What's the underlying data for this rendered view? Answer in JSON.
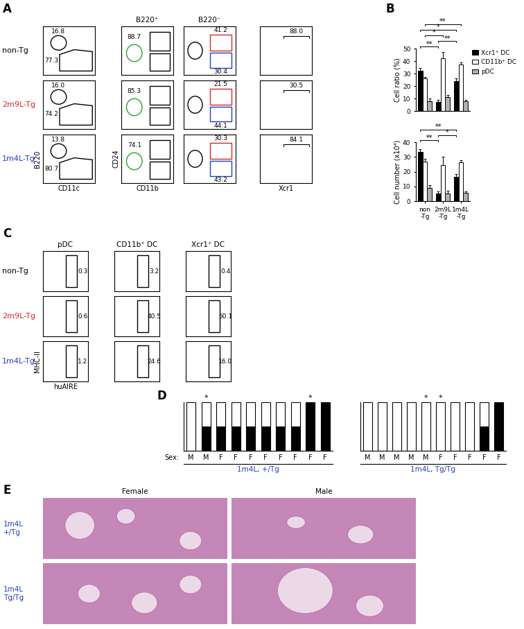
{
  "panel_labels": [
    "A",
    "B",
    "C",
    "D",
    "E"
  ],
  "A": {
    "column_headers": [
      "B220⁺",
      "B220⁻"
    ],
    "x_labels": [
      "CD11c",
      "CD11b",
      "Xcr1"
    ],
    "y_labels": [
      "B220",
      "CD24"
    ],
    "rows": [
      {
        "genotype": "non-Tg",
        "B220_CD11c_gates": [
          16.8,
          77.3
        ],
        "B220pos_gate": 88.7,
        "B220neg_gates": [
          41.2,
          30.4
        ],
        "Xcr1_gate": 88.0
      },
      {
        "genotype": "2m9L-Tg",
        "B220_CD11c_gates": [
          16.0,
          74.2
        ],
        "B220pos_gate": 85.3,
        "B220neg_gates": [
          21.5,
          44.1
        ],
        "Xcr1_gate": 30.5
      },
      {
        "genotype": "1m4L-Tg",
        "B220_CD11c_gates": [
          13.8,
          80.7
        ],
        "B220pos_gate": 74.1,
        "B220neg_gates": [
          30.3,
          43.2
        ],
        "Xcr1_gate": 84.1
      }
    ]
  },
  "C": {
    "column_headers": [
      "pDC",
      "CD11b⁺ DC",
      "Xcr1⁺ DC"
    ],
    "x_label": "huAIRE",
    "y_label": "MHC-II",
    "rows": [
      {
        "genotype": "non-Tg",
        "huAIRE_gates": [
          0.3,
          3.2,
          0.4
        ]
      },
      {
        "genotype": "2m9L-Tg",
        "huAIRE_gates": [
          0.6,
          40.5,
          50.1
        ]
      },
      {
        "genotype": "1m4L-Tg",
        "huAIRE_gates": [
          1.2,
          24.6,
          16.0
        ]
      }
    ]
  },
  "E": {
    "column_headers": [
      "Female",
      "Male"
    ],
    "row_labels": [
      "1m4L\n+/Tg",
      "1m4L\nTg/Tg"
    ]
  },
  "chart_data": [
    {
      "type": "bar",
      "ylabel": "Cell ratio (%)",
      "categories": [
        "non\n-Tg",
        "2m9L\n-Tg",
        "1m4L\n-Tg"
      ],
      "series": [
        {
          "name": "Xcr1⁺ DC",
          "color": "#000000",
          "values": [
            32.5,
            7.5,
            24.0
          ],
          "errors": [
            2.0,
            1.5,
            2.0
          ]
        },
        {
          "name": "CD11b⁺ DC",
          "color": "#ffffff",
          "values": [
            26.0,
            42.0,
            37.5
          ],
          "errors": [
            1.5,
            5.0,
            1.5
          ]
        },
        {
          "name": "pDC",
          "color": "#b0b0b0",
          "values": [
            8.0,
            11.0,
            8.0
          ],
          "errors": [
            2.0,
            2.0,
            1.0
          ]
        }
      ],
      "ylim": [
        0,
        50
      ],
      "yticks": [
        0,
        10,
        20,
        30,
        40,
        50
      ],
      "legend": "right",
      "tick_labels": "y",
      "significance": [
        {
          "label": "**",
          "from": [
            0,
            0
          ],
          "to": [
            1,
            0
          ]
        },
        {
          "label": "**",
          "from": [
            1,
            0
          ],
          "to": [
            2,
            0
          ]
        },
        {
          "label": "*",
          "from": [
            0,
            1
          ],
          "to": [
            1,
            1
          ]
        },
        {
          "label": "*",
          "from": [
            0,
            0
          ],
          "to": [
            2,
            0
          ]
        },
        {
          "label": "**",
          "from": [
            0,
            1
          ],
          "to": [
            2,
            1
          ]
        }
      ]
    },
    {
      "type": "bar",
      "ylabel": "Cell number (x10⁴)",
      "categories": [
        "non\n-Tg",
        "2m9L\n-Tg",
        "1m4L\n-Tg"
      ],
      "series": [
        {
          "color": "#000000",
          "values": [
            33.5,
            5.0,
            16.5
          ],
          "errors": [
            2.0,
            1.5,
            2.0
          ]
        },
        {
          "color": "#ffffff",
          "values": [
            27.0,
            24.5,
            26.5
          ],
          "errors": [
            1.5,
            5.5,
            1.5
          ]
        },
        {
          "color": "#b0b0b0",
          "values": [
            9.0,
            5.0,
            5.5
          ],
          "errors": [
            2.0,
            2.0,
            1.0
          ]
        }
      ],
      "ylim": [
        0,
        40
      ],
      "yticks": [
        0,
        10,
        20,
        30,
        40
      ],
      "significance": [
        {
          "label": "**",
          "from": [
            0,
            0
          ],
          "to": [
            1,
            0
          ]
        },
        {
          "label": "*",
          "from": [
            1,
            0
          ],
          "to": [
            2,
            0
          ]
        },
        {
          "label": "**",
          "from": [
            0,
            0
          ],
          "to": [
            2,
            0
          ]
        }
      ]
    },
    {
      "type": "bar",
      "stacked": true,
      "title": "1m4L, +/Tg",
      "xlabel": "Sex:",
      "categories": [
        "M",
        "M",
        "F",
        "F",
        "F",
        "F",
        "F",
        "F",
        "F",
        "F"
      ],
      "series": [
        {
          "color": "#000000",
          "values": [
            0,
            0.5,
            0.5,
            0.5,
            0.5,
            0.5,
            0.5,
            0.5,
            1,
            1
          ]
        },
        {
          "color": "#ffffff",
          "values": [
            1,
            0.5,
            0.5,
            0.5,
            0.5,
            0.5,
            0.5,
            0.5,
            0,
            0
          ]
        }
      ],
      "ylim": [
        0,
        1
      ],
      "tick_labels": "x",
      "annotations": [
        {
          "index": 1,
          "text": "*"
        },
        {
          "index": 8,
          "text": "*"
        }
      ]
    },
    {
      "type": "bar",
      "stacked": true,
      "title": "1m4L, Tg/Tg",
      "categories": [
        "M",
        "M",
        "M",
        "M",
        "M",
        "F",
        "F",
        "F",
        "F",
        "F"
      ],
      "series": [
        {
          "color": "#000000",
          "values": [
            0,
            0,
            0,
            0,
            0,
            0,
            0,
            0,
            0.5,
            1
          ]
        },
        {
          "color": "#ffffff",
          "values": [
            1,
            1,
            1,
            1,
            1,
            1,
            1,
            1,
            0.5,
            0
          ]
        }
      ],
      "ylim": [
        0,
        1
      ],
      "tick_labels": "x",
      "annotations": [
        {
          "index": 4,
          "text": "*"
        },
        {
          "index": 5,
          "text": "*"
        }
      ]
    }
  ]
}
